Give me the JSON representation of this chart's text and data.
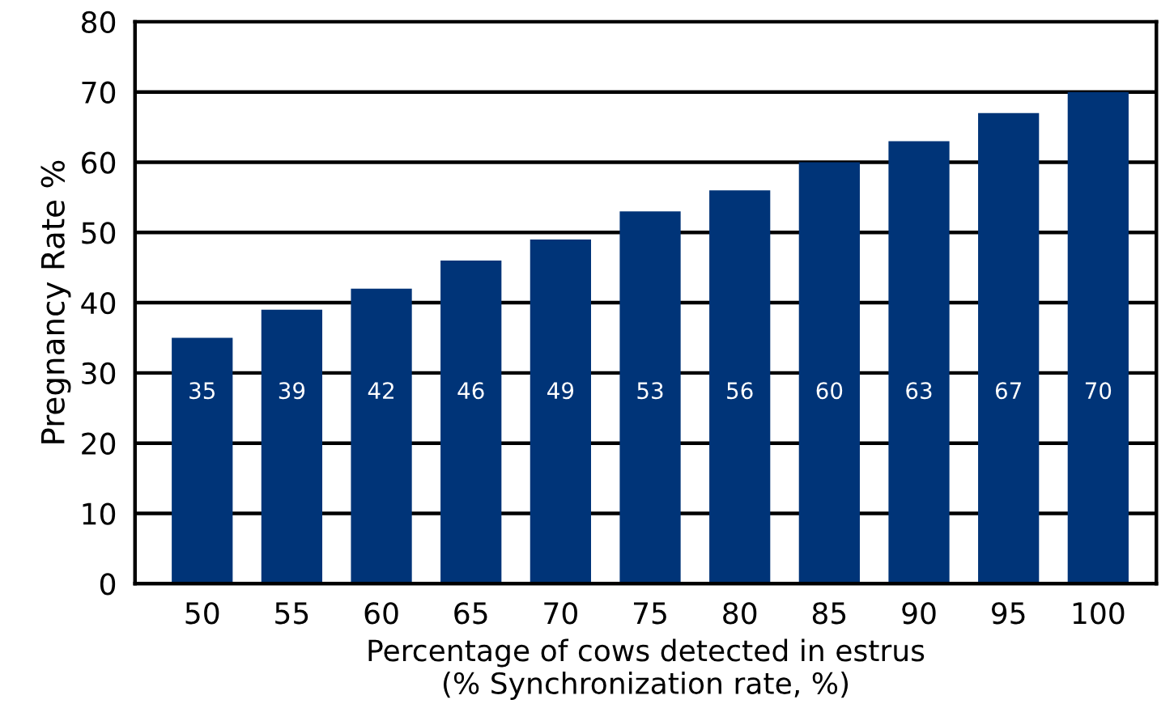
{
  "chart_data": {
    "type": "bar",
    "xlabel": "Percentage of cows detected in estrus\n(% Synchronization rate, %)",
    "ylabel": "Pregnancy Rate %",
    "categories": [
      "50",
      "55",
      "60",
      "65",
      "70",
      "75",
      "80",
      "85",
      "90",
      "95",
      "100"
    ],
    "values": [
      35,
      39,
      42,
      46,
      49,
      53,
      56,
      60,
      63,
      67,
      70
    ],
    "color": "#003478",
    "ylim": [
      0,
      80
    ],
    "yticks": [
      0,
      10,
      20,
      30,
      40,
      50,
      60,
      70,
      80
    ],
    "grid": "y",
    "data_labels": true
  }
}
